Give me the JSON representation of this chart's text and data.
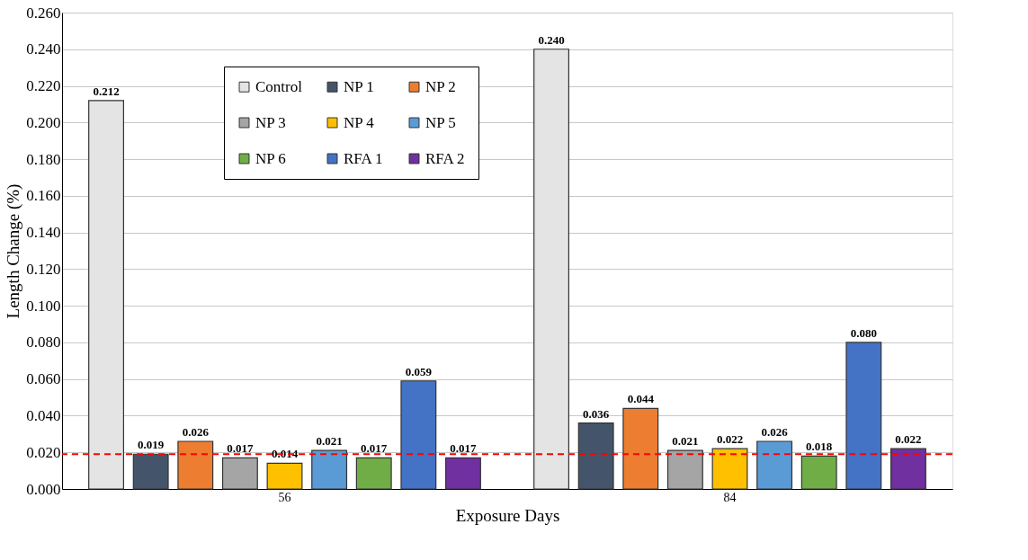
{
  "chart_data": {
    "type": "bar",
    "xlabel": "Exposure Days",
    "ylabel": "Length Change (%)",
    "categories": [
      "56",
      "84"
    ],
    "series": [
      {
        "name": "Control",
        "color": "#e4e4e4",
        "values": [
          0.212,
          0.24
        ],
        "value_labels": [
          "0.212",
          "0.240"
        ]
      },
      {
        "name": "NP 1",
        "color": "#44546a",
        "values": [
          0.019,
          0.036
        ],
        "value_labels": [
          "0.019",
          "0.036"
        ]
      },
      {
        "name": "NP 2",
        "color": "#ed7d31",
        "values": [
          0.026,
          0.044
        ],
        "value_labels": [
          "0.026",
          "0.044"
        ]
      },
      {
        "name": "NP 3",
        "color": "#a5a5a5",
        "values": [
          0.017,
          0.021
        ],
        "value_labels": [
          "0.017",
          "0.021"
        ]
      },
      {
        "name": "NP 4",
        "color": "#ffc000",
        "values": [
          0.014,
          0.022
        ],
        "value_labels": [
          "0.014",
          "0.022"
        ]
      },
      {
        "name": "NP 5",
        "color": "#5b9bd5",
        "values": [
          0.021,
          0.026
        ],
        "value_labels": [
          "0.021",
          "0.026"
        ]
      },
      {
        "name": "NP 6",
        "color": "#70ad47",
        "values": [
          0.017,
          0.018
        ],
        "value_labels": [
          "0.017",
          "0.018"
        ]
      },
      {
        "name": "RFA 1",
        "color": "#4472c4",
        "values": [
          0.059,
          0.08
        ],
        "value_labels": [
          "0.059",
          "0.080"
        ]
      },
      {
        "name": "RFA 2",
        "color": "#7030a0",
        "values": [
          0.017,
          0.022
        ],
        "value_labels": [
          "0.017",
          "0.022"
        ]
      }
    ],
    "ylim": [
      0,
      0.26
    ],
    "yticks": [
      {
        "value": 0,
        "label": "0.000"
      },
      {
        "value": 0.02,
        "label": "0.020"
      },
      {
        "value": 0.04,
        "label": "0.040"
      },
      {
        "value": 0.06,
        "label": "0.060"
      },
      {
        "value": 0.08,
        "label": "0.080"
      },
      {
        "value": 0.1,
        "label": "0.100"
      },
      {
        "value": 0.12,
        "label": "0.120"
      },
      {
        "value": 0.14,
        "label": "0.140"
      },
      {
        "value": 0.16,
        "label": "0.160"
      },
      {
        "value": 0.18,
        "label": "0.180"
      },
      {
        "value": 0.2,
        "label": "0.200"
      },
      {
        "value": 0.22,
        "label": "0.220"
      },
      {
        "value": 0.24,
        "label": "0.240"
      },
      {
        "value": 0.26,
        "label": "0.260"
      }
    ],
    "ref_lines": [
      {
        "axis": "y",
        "value": 0.019,
        "color": "#ff0000",
        "line_style": "dashed"
      }
    ],
    "grid": "y",
    "legend": "top left"
  }
}
